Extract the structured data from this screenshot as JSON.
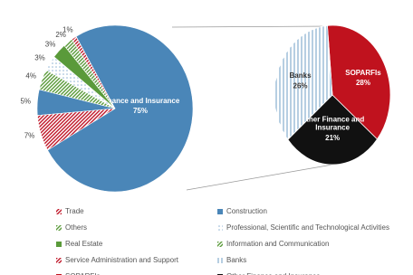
{
  "chart_data": {
    "type": "pie-of-pie",
    "pie": {
      "categories": [
        "Finance and Insurance",
        "Trade",
        "Information and Communication",
        "Real Estate",
        "Professional, Scientific and Technological Activities",
        "Others",
        "Construction",
        "Service Administration and Support"
      ],
      "values": [
        75,
        1,
        2,
        3,
        3,
        4,
        5,
        7
      ],
      "value_labels": [
        "75%",
        "1%",
        "2%",
        "3%",
        "3%",
        "4%",
        "5%",
        "7%"
      ],
      "colors": [
        "#4a86b8",
        "#c0182a",
        "#5a9a3a",
        "#5a9a3a",
        "#8fb3d3",
        "#5a9a3a",
        "#4a86b8",
        "#c0182a"
      ],
      "patterns": [
        "solid",
        "hatch",
        "hatch",
        "solid",
        "dots",
        "hatch",
        "solid",
        "hatch"
      ]
    },
    "sub_pie": {
      "categories": [
        "SOPARFIs",
        "Other Finance and Insurance",
        "Banks"
      ],
      "values": [
        28,
        21,
        26
      ],
      "value_labels": [
        "28%",
        "21%",
        "26%"
      ],
      "colors": [
        "#c0121e",
        "#111111",
        "#4a86b8"
      ],
      "patterns": [
        "solid",
        "solid",
        "stripes"
      ]
    }
  }
}
